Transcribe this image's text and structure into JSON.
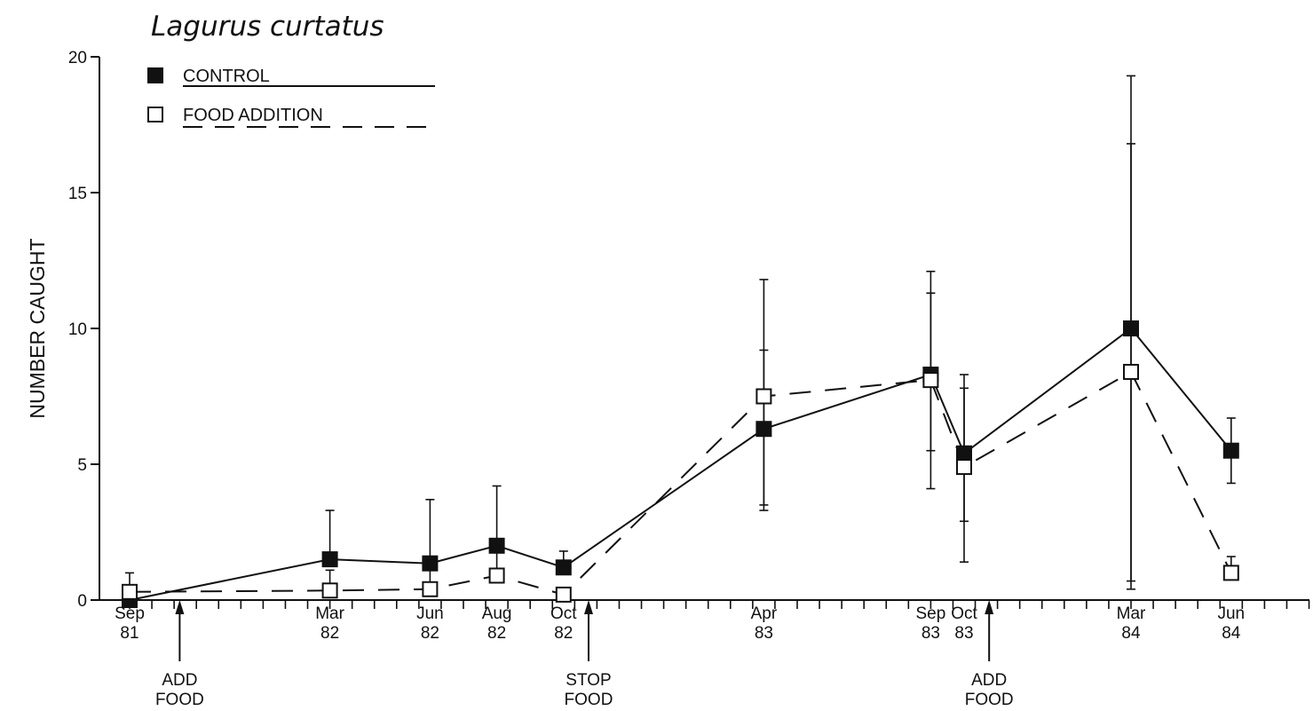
{
  "chart_data": {
    "type": "line",
    "title": "Lagurus curtatus",
    "xlabel": "",
    "ylabel": "NUMBER CAUGHT",
    "ylim": [
      0,
      20
    ],
    "yticks": [
      0,
      5,
      10,
      15,
      20
    ],
    "grid": false,
    "legend_position": "top-left",
    "categories": [
      {
        "month": "Sep",
        "year": "81",
        "t": 0
      },
      {
        "month": "Mar",
        "year": "82",
        "t": 6
      },
      {
        "month": "Jun",
        "year": "82",
        "t": 9
      },
      {
        "month": "Aug",
        "year": "82",
        "t": 11
      },
      {
        "month": "Oct",
        "year": "82",
        "t": 13
      },
      {
        "month": "Apr",
        "year": "83",
        "t": 19
      },
      {
        "month": "Sep",
        "year": "83",
        "t": 24
      },
      {
        "month": "Oct",
        "year": "83",
        "t": 25
      },
      {
        "month": "Mar",
        "year": "84",
        "t": 30
      },
      {
        "month": "Jun",
        "year": "84",
        "t": 33
      }
    ],
    "series": [
      {
        "name": "CONTROL",
        "marker": "filled-square",
        "line": "solid",
        "color": "#111111",
        "points": [
          {
            "t": 0,
            "y": 0.0,
            "upper": null
          },
          {
            "t": 6,
            "y": 1.5,
            "upper": 3.3
          },
          {
            "t": 9,
            "y": 1.35,
            "upper": 3.7
          },
          {
            "t": 11,
            "y": 2.0,
            "upper": 4.2
          },
          {
            "t": 13,
            "y": 1.2,
            "upper": 1.8
          },
          {
            "t": 19,
            "y": 6.3,
            "upper": 9.2,
            "lower": 3.5
          },
          {
            "t": 24,
            "y": 8.3,
            "upper": 11.3,
            "lower": 5.5
          },
          {
            "t": 25,
            "y": 5.4,
            "upper": 7.8,
            "lower": 2.9
          },
          {
            "t": 30,
            "y": 10.0,
            "upper": 19.3,
            "lower": 0.7
          },
          {
            "t": 33,
            "y": 5.5,
            "upper": 6.7,
            "lower": 4.3
          }
        ]
      },
      {
        "name": "FOOD ADDITION",
        "marker": "open-square",
        "line": "dashed",
        "color": "#111111",
        "points": [
          {
            "t": 0,
            "y": 0.3,
            "upper": 1.0
          },
          {
            "t": 6,
            "y": 0.35,
            "upper": 1.1
          },
          {
            "t": 9,
            "y": 0.4,
            "upper": 1.3
          },
          {
            "t": 11,
            "y": 0.9,
            "upper": 1.8
          },
          {
            "t": 13,
            "y": 0.2,
            "upper": null
          },
          {
            "t": 19,
            "y": 7.5,
            "upper": 11.8,
            "lower": 3.3
          },
          {
            "t": 24,
            "y": 8.1,
            "upper": 12.1,
            "lower": 4.1
          },
          {
            "t": 25,
            "y": 4.9,
            "upper": 8.3,
            "lower": 1.4
          },
          {
            "t": 30,
            "y": 8.4,
            "upper": 16.8,
            "lower": 0.4
          },
          {
            "t": 33,
            "y": 1.0,
            "upper": 1.6
          }
        ]
      }
    ],
    "annotations": [
      {
        "t": 1.5,
        "line1": "ADD",
        "line2": "FOOD"
      },
      {
        "t": 13.75,
        "line1": "STOP",
        "line2": "FOOD"
      },
      {
        "t": 25.75,
        "line1": "ADD",
        "line2": "FOOD"
      }
    ]
  }
}
